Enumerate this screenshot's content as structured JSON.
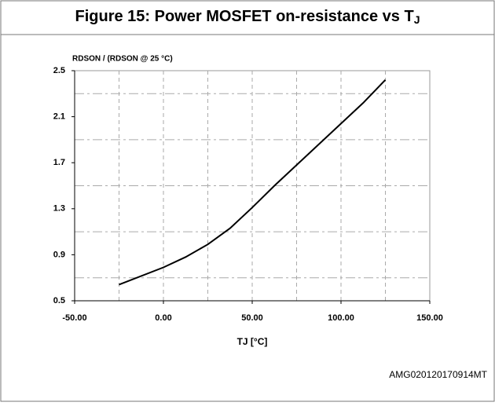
{
  "chart_data": {
    "type": "line",
    "title": "Figure 15: Power MOSFET on-resistance vs T",
    "title_subscript": "J",
    "y_label": "RDSON / (RDSON @ 25 °C)",
    "x_label": "TJ [°C]",
    "footnote": "AMG020120170914MT",
    "x": [
      -25,
      0,
      12.5,
      25,
      37.5,
      50,
      62.5,
      75,
      87.5,
      100,
      112.5,
      125
    ],
    "series": [
      {
        "name": "RDSON",
        "color": "#000000",
        "values": [
          0.64,
          0.79,
          0.88,
          0.99,
          1.13,
          1.31,
          1.5,
          1.68,
          1.86,
          2.04,
          2.22,
          2.42
        ]
      }
    ],
    "xlim": [
      -50,
      150
    ],
    "xticks": [
      {
        "value": -50,
        "label": "-50.00"
      },
      {
        "value": 0,
        "label": "0.00"
      },
      {
        "value": 50,
        "label": "50.00"
      },
      {
        "value": 100,
        "label": "100.00"
      },
      {
        "value": 150,
        "label": "150.00"
      }
    ],
    "ylim": [
      0.5,
      2.5
    ],
    "yticks": [
      0.5,
      0.9,
      1.3,
      1.7,
      2.1,
      2.5
    ],
    "xgrid": [
      -25,
      0,
      25,
      50,
      75,
      100,
      125
    ],
    "ygrid": [
      0.7,
      1.1,
      1.5,
      1.9,
      2.3
    ],
    "grid": true
  }
}
